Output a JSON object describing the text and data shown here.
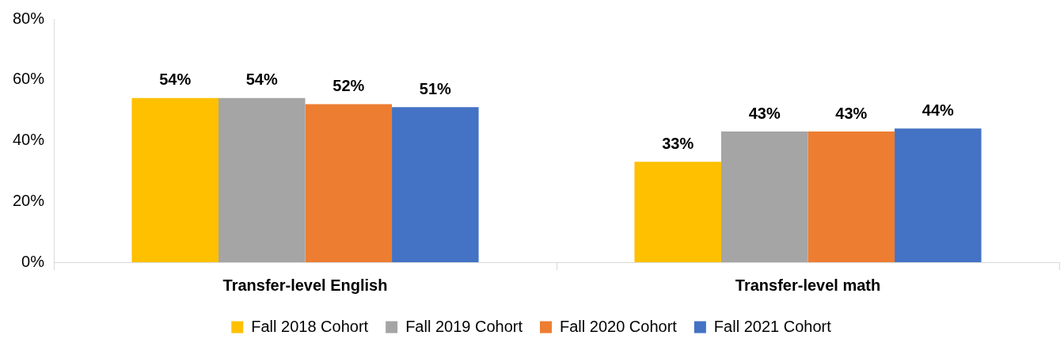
{
  "chart_data": {
    "type": "bar",
    "categories": [
      "Transfer-level English",
      "Transfer-level math"
    ],
    "series": [
      {
        "name": "Fall 2018 Cohort",
        "color": "#ffc000",
        "values": [
          54,
          33
        ],
        "value_labels": [
          "54%",
          "33%"
        ]
      },
      {
        "name": "Fall 2019 Cohort",
        "color": "#a5a5a5",
        "values": [
          54,
          43
        ],
        "value_labels": [
          "54%",
          "43%"
        ]
      },
      {
        "name": "Fall 2020 Cohort",
        "color": "#ed7d31",
        "values": [
          52,
          43
        ],
        "value_labels": [
          "52%",
          "43%"
        ]
      },
      {
        "name": "Fall 2021 Cohort",
        "color": "#4472c4",
        "values": [
          51,
          44
        ],
        "value_labels": [
          "51%",
          "44%"
        ]
      }
    ],
    "ylim": [
      0,
      80
    ],
    "yticks": [
      {
        "value": 0,
        "label": "0%"
      },
      {
        "value": 20,
        "label": "20%"
      },
      {
        "value": 40,
        "label": "40%"
      },
      {
        "value": 60,
        "label": "60%"
      },
      {
        "value": 80,
        "label": "80%"
      }
    ],
    "grid": false,
    "legend": "bottom"
  }
}
